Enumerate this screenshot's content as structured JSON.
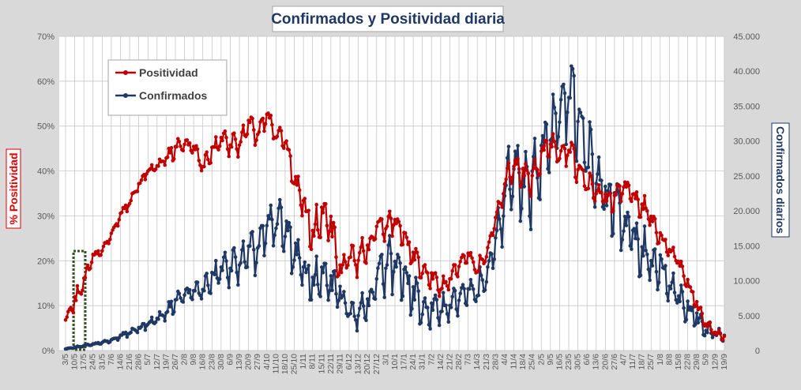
{
  "colors": {
    "positividad": "#c00000",
    "confirmados": "#1f3864",
    "highlight_box": "#375623",
    "plot_bg": "#ffffff",
    "page_bg": "#d9d9d9"
  },
  "chart_data": {
    "type": "line",
    "title": "Confirmados  y Positividad  diaria",
    "ylabel_left": "% Positividad",
    "ylabel_right": "Confirmados diarios",
    "yleft_ticks": [
      "0%",
      "10%",
      "20%",
      "30%",
      "40%",
      "50%",
      "60%",
      "70%"
    ],
    "yleft_range": [
      0,
      70
    ],
    "yright_ticks": [
      "0",
      "5.000",
      "10.000",
      "15.000",
      "20.000",
      "25.000",
      "30.000",
      "35.000",
      "40.000",
      "45.000"
    ],
    "yright_range": [
      0,
      45000
    ],
    "x_tick_labels": [
      "3/5",
      "10/5",
      "17/5",
      "24/5",
      "31/5",
      "7/6",
      "14/6",
      "21/6",
      "28/6",
      "5/7",
      "12/7",
      "19/7",
      "26/7",
      "2/8",
      "9/8",
      "16/8",
      "23/8",
      "30/8",
      "6/9",
      "13/9",
      "20/9",
      "27/9",
      "4/10",
      "11/10",
      "18/10",
      "25/10",
      "1/11",
      "8/11",
      "15/11",
      "22/11",
      "29/11",
      "6/12",
      "13/12",
      "20/12",
      "27/12",
      "3/1",
      "10/1",
      "17/1",
      "24/1",
      "31/1",
      "7/2",
      "14/2",
      "21/2",
      "28/2",
      "7/3",
      "14/3",
      "21/3",
      "28/3",
      "4/4",
      "11/4",
      "18/4",
      "25/4",
      "2/5",
      "9/5",
      "16/5",
      "23/5",
      "30/5",
      "6/6",
      "13/6",
      "20/6",
      "27/6",
      "4/7",
      "11/7",
      "18/7",
      "25/7",
      "1/8",
      "8/8",
      "15/8",
      "22/8",
      "29/8",
      "5/9",
      "12/9",
      "19/9"
    ],
    "highlight_range": [
      "10/5",
      "17/5"
    ],
    "grid": true,
    "legend_position": "top-left",
    "series": [
      {
        "name": "Positividad",
        "axis": "left",
        "unit": "%",
        "weekly_values": [
          6.5,
          11,
          15,
          21,
          22,
          26,
          30,
          33,
          37,
          40,
          41,
          43,
          45,
          46,
          45,
          41,
          44,
          47,
          46,
          46,
          50,
          48,
          52,
          48,
          47,
          38,
          32,
          26,
          29,
          28,
          17,
          22,
          21,
          23,
          27,
          28,
          29,
          25,
          21,
          18,
          16,
          14,
          16,
          19,
          21,
          18,
          21,
          29,
          37,
          41,
          40,
          38,
          43,
          47,
          44,
          45,
          41,
          37,
          35,
          34,
          33,
          37,
          34,
          32,
          30,
          25,
          23,
          20,
          15,
          10,
          6,
          4,
          3
        ],
        "weekly_amplitude": [
          0.6,
          2.5,
          2.8,
          1.5,
          1.2,
          1.2,
          1.3,
          1.2,
          1.2,
          1.1,
          1.3,
          1.5,
          2.5,
          2.6,
          2.5,
          2.5,
          2.7,
          2.7,
          3,
          3,
          3,
          3,
          3.2,
          3,
          3,
          3.5,
          6,
          6,
          6,
          6,
          6,
          5,
          5,
          4,
          3.5,
          3.5,
          3.5,
          3.5,
          3,
          3,
          2.8,
          2.8,
          2.8,
          2.8,
          2.8,
          2.8,
          2.8,
          3,
          3.5,
          4,
          4,
          4,
          4.5,
          4.5,
          4.5,
          4.5,
          4.5,
          4,
          3.5,
          3.5,
          3.5,
          3.5,
          3.5,
          3.5,
          3.5,
          3,
          2.5,
          2,
          2,
          2,
          1.5,
          1.2,
          1
        ]
      },
      {
        "name": "Confirmados",
        "axis": "right",
        "unit": "casos",
        "weekly_values": [
          200,
          450,
          650,
          900,
          1100,
          1500,
          2000,
          2600,
          3200,
          3800,
          4500,
          5500,
          7000,
          8000,
          8200,
          8800,
          10000,
          11500,
          12000,
          12500,
          13500,
          14500,
          17000,
          18500,
          17500,
          14000,
          11000,
          10000,
          10000,
          9500,
          8000,
          6000,
          5500,
          7000,
          9500,
          13000,
          12500,
          10000,
          8000,
          6000,
          5500,
          6000,
          6500,
          7500,
          8000,
          8500,
          10000,
          15000,
          22000,
          26000,
          25000,
          24000,
          27000,
          32000,
          35000,
          37000,
          34000,
          28000,
          24000,
          22000,
          20000,
          18000,
          16000,
          14000,
          13000,
          12000,
          10000,
          8000,
          6000,
          4500,
          3000,
          2500,
          2000
        ],
        "weekly_amplitude": [
          60,
          100,
          150,
          200,
          250,
          350,
          450,
          550,
          650,
          800,
          900,
          1200,
          1500,
          1800,
          2000,
          2200,
          2500,
          2800,
          3000,
          3200,
          3500,
          3800,
          4500,
          5000,
          5000,
          4500,
          4000,
          4000,
          4000,
          3800,
          3500,
          3000,
          2800,
          3200,
          4200,
          5000,
          5000,
          4500,
          3800,
          3000,
          2800,
          3000,
          3000,
          3200,
          3400,
          3500,
          4200,
          5500,
          6500,
          7000,
          7000,
          7000,
          7500,
          8000,
          8500,
          8500,
          8000,
          7500,
          7000,
          6500,
          6000,
          5500,
          5200,
          4800,
          4500,
          4200,
          3800,
          3200,
          2600,
          2000,
          1500,
          1200,
          900
        ]
      }
    ]
  }
}
